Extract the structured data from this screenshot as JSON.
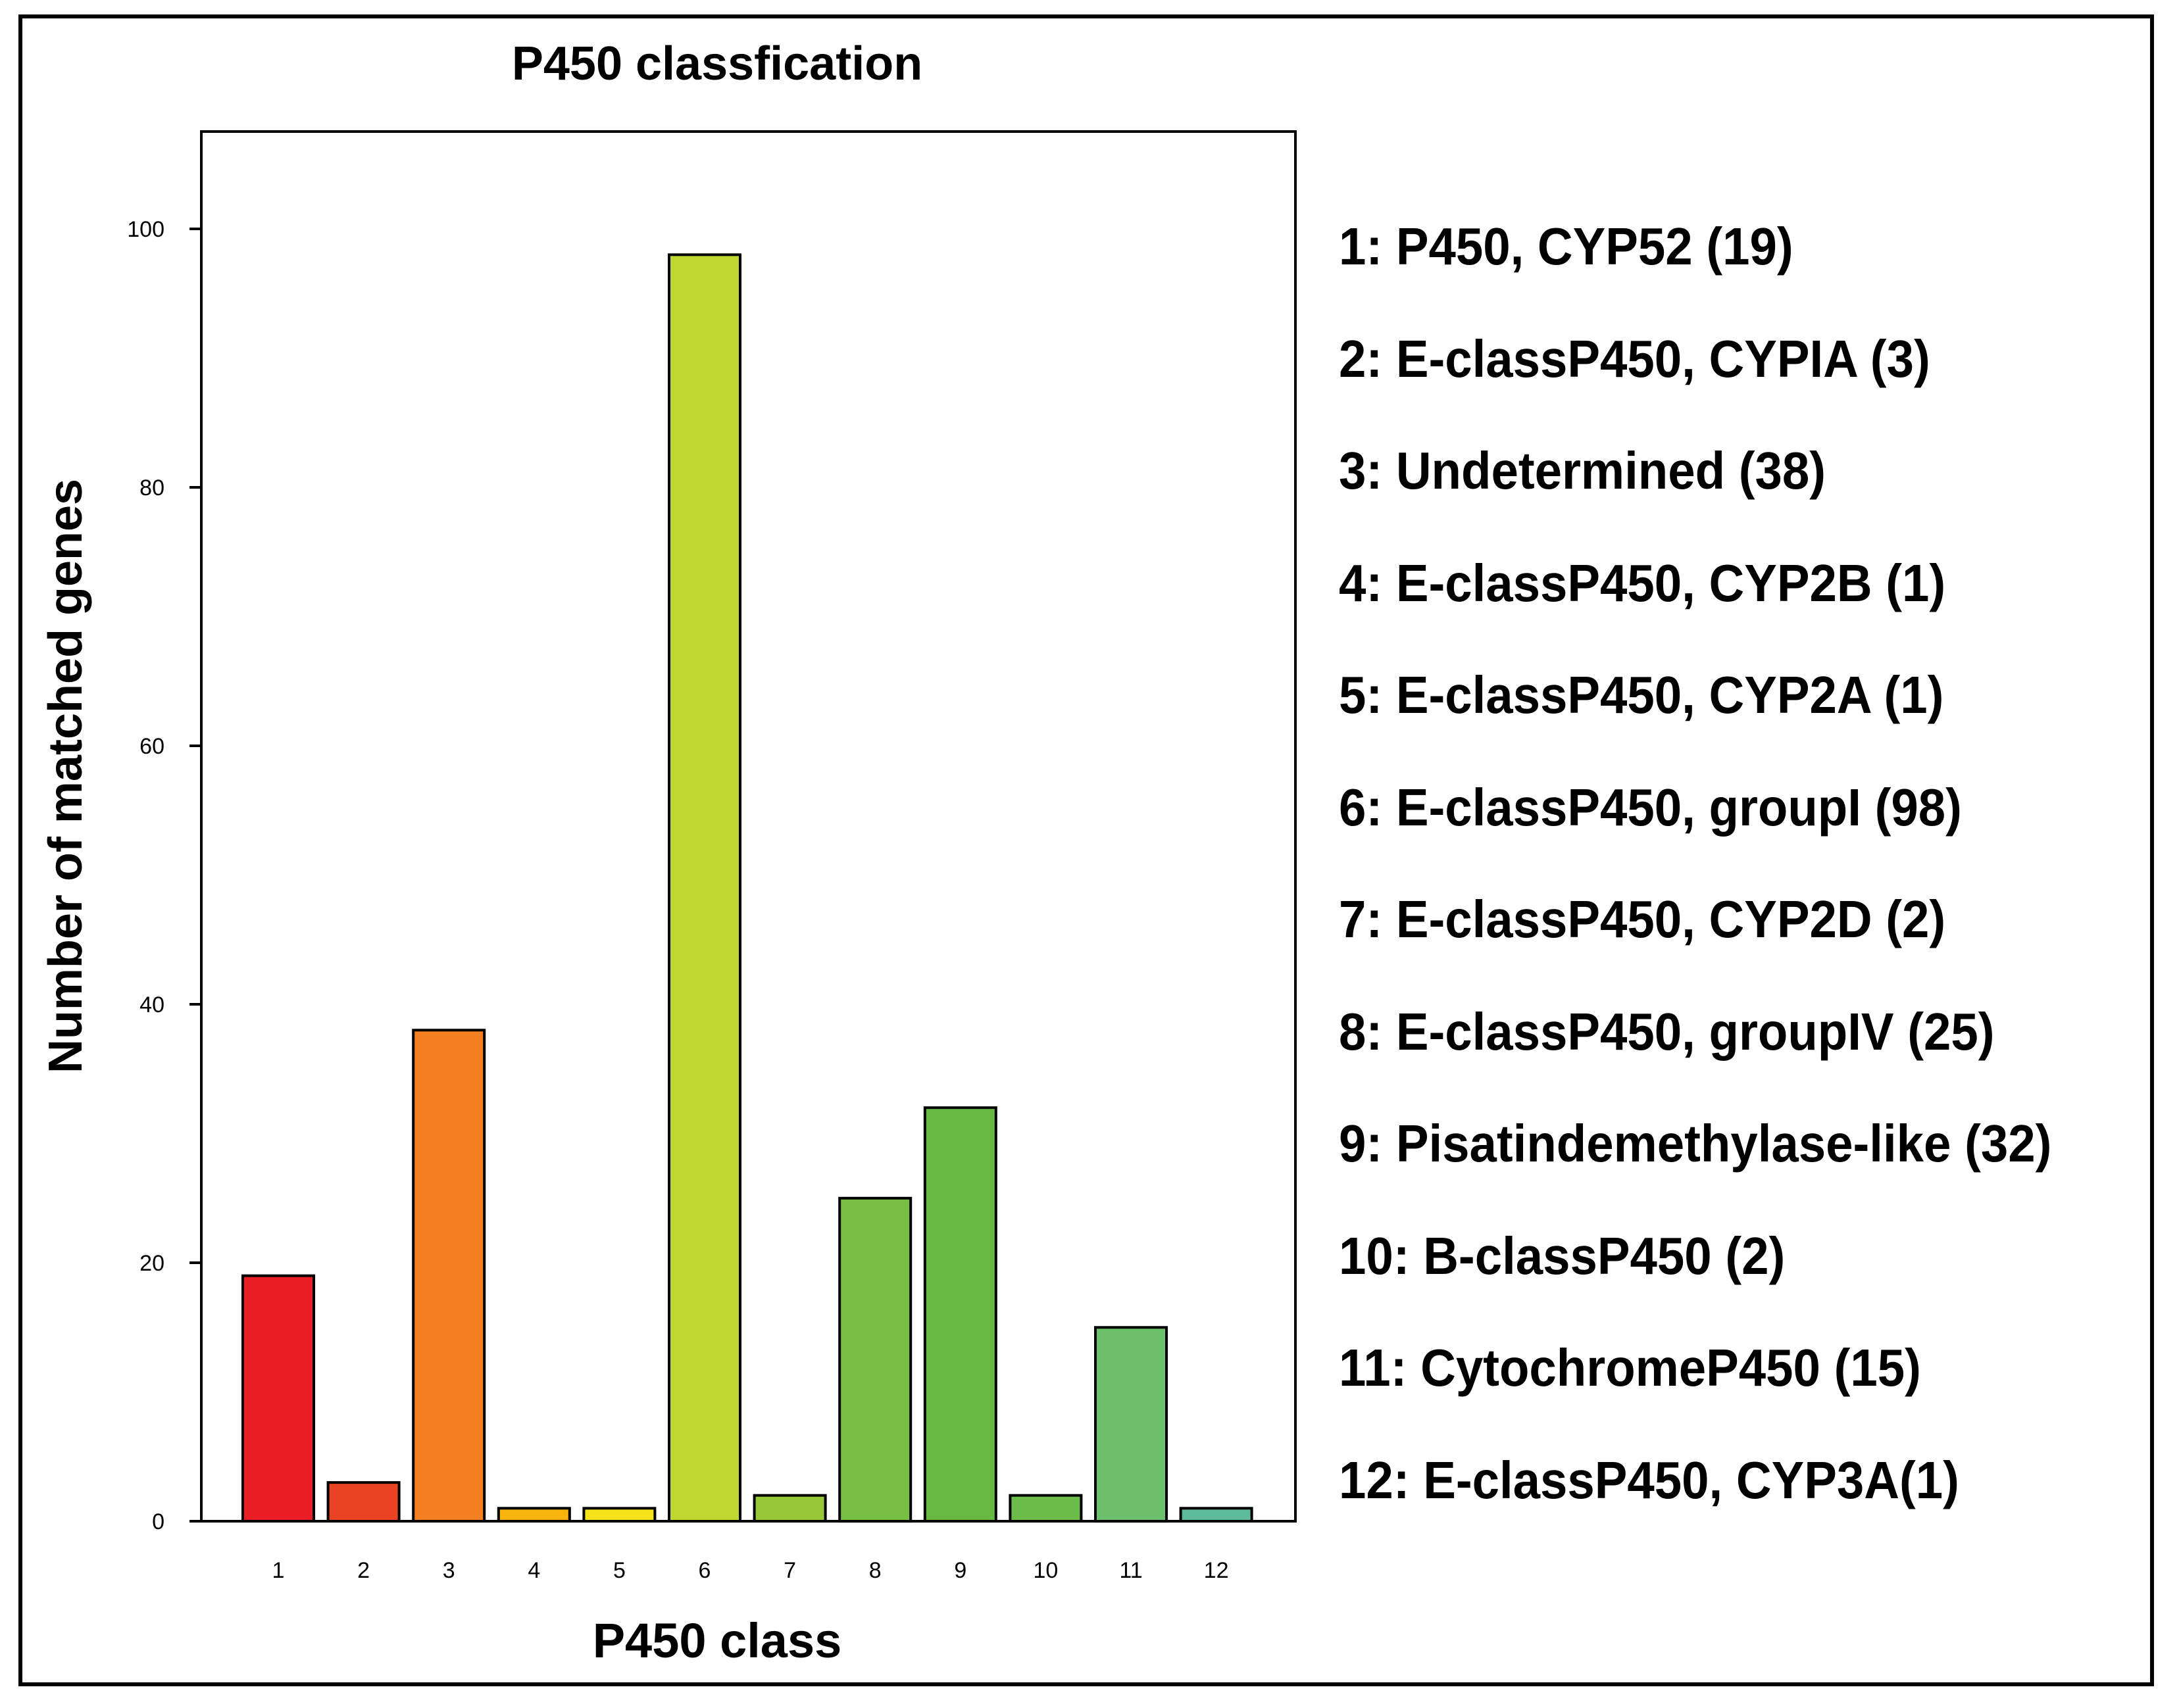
{
  "chart_data": {
    "type": "bar",
    "title": "P450 classfication",
    "xlabel": "P450 class",
    "ylabel": "Number of matched genes",
    "categories": [
      "1",
      "2",
      "3",
      "4",
      "5",
      "6",
      "7",
      "8",
      "9",
      "10",
      "11",
      "12"
    ],
    "values": [
      19,
      3,
      38,
      1,
      1,
      98,
      2,
      25,
      32,
      2,
      15,
      1
    ],
    "colors": [
      "#ea1c24",
      "#e84424",
      "#f37f20",
      "#f8b30c",
      "#f5e21a",
      "#bfd730",
      "#97c83a",
      "#78be42",
      "#68b942",
      "#6cbc4a",
      "#6cc06c",
      "#5bbb9a"
    ],
    "ylim": [
      0,
      107
    ],
    "yticks": [
      0,
      20,
      40,
      60,
      80,
      100
    ],
    "grid": false,
    "legend_position": "right",
    "legend": [
      "1: P450, CYP52 (19)",
      "2: E-classP450, CYPIA (3)",
      "3: Undetermined (38)",
      "4: E-classP450, CYP2B (1)",
      "5: E-classP450, CYP2A (1)",
      "6: E-classP450, groupI (98)",
      "7: E-classP450, CYP2D (2)",
      "8: E-classP450, groupIV (25)",
      "9: Pisatindemethylase-like (32)",
      "10: B-classP450 (2)",
      "11: CytochromeP450 (15)",
      "12: E-classP450, CYP3A(1)"
    ]
  }
}
